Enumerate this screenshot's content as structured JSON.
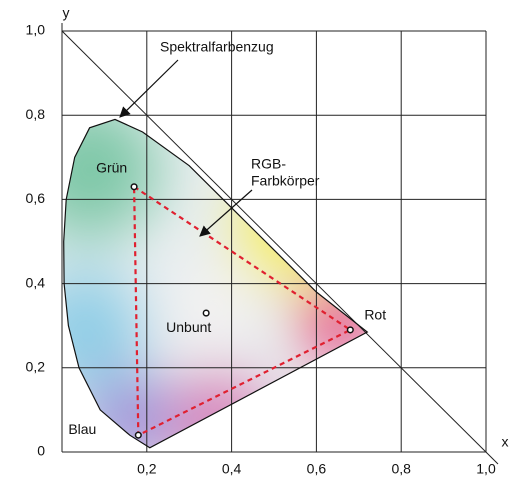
{
  "chart_data": {
    "type": "chromaticity",
    "x_label": "x",
    "y_label": "y",
    "xlim": [
      0,
      1
    ],
    "ylim": [
      0,
      1
    ],
    "xticks": [
      {
        "value": 0.2,
        "label": "0,2"
      },
      {
        "value": 0.4,
        "label": "0,4"
      },
      {
        "value": 0.6,
        "label": "0,6"
      },
      {
        "value": 0.8,
        "label": "0,8"
      },
      {
        "value": 1.0,
        "label": "1,0"
      }
    ],
    "yticks": [
      0,
      {
        "value": 0.2,
        "label": "0,2"
      },
      {
        "value": 0.4,
        "label": "0,4"
      },
      {
        "value": 0.6,
        "label": "0,6"
      },
      {
        "value": 0.8,
        "label": "0,8"
      },
      {
        "value": 1.0,
        "label": "1,0"
      }
    ],
    "grid": true,
    "locus": {
      "x": [
        0.207,
        0.16,
        0.09,
        0.04,
        0.015,
        0.005,
        0.004,
        0.01,
        0.03,
        0.065,
        0.125,
        0.19,
        0.3,
        0.4,
        0.5,
        0.6,
        0.72
      ],
      "y": [
        0.01,
        0.04,
        0.1,
        0.2,
        0.3,
        0.4,
        0.5,
        0.6,
        0.7,
        0.77,
        0.79,
        0.76,
        0.68,
        0.58,
        0.48,
        0.38,
        0.285
      ]
    },
    "points": [
      {
        "name": "Grün",
        "x": 0.17,
        "y": 0.63
      },
      {
        "name": "Unbunt",
        "x": 0.34,
        "y": 0.33
      },
      {
        "name": "Rot",
        "x": 0.68,
        "y": 0.29
      },
      {
        "name": "Blau",
        "x": 0.18,
        "y": 0.04
      }
    ],
    "triangle_color": "#e02030",
    "annotations": [
      {
        "lines": [
          "Spektralfarbenzug"
        ]
      },
      {
        "lines": [
          "RGB-",
          "Farbkörper"
        ]
      }
    ]
  }
}
